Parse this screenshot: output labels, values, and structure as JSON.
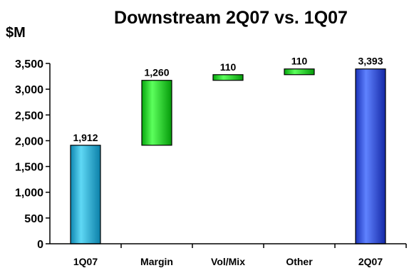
{
  "chart_data": {
    "type": "bar",
    "subtype": "waterfall",
    "title": "Downstream 2Q07 vs. 1Q07",
    "unit_label": "$M",
    "categories": [
      "1Q07",
      "Margin",
      "Vol/Mix",
      "Other",
      "2Q07"
    ],
    "bars": [
      {
        "category": "1Q07",
        "kind": "total",
        "start": 0,
        "end": 1912,
        "label": "1,912"
      },
      {
        "category": "Margin",
        "kind": "delta",
        "start": 1912,
        "end": 3172,
        "label": "1,260"
      },
      {
        "category": "Vol/Mix",
        "kind": "delta",
        "start": 3172,
        "end": 3282,
        "label": "110"
      },
      {
        "category": "Other",
        "kind": "delta",
        "start": 3282,
        "end": 3393,
        "label": "110"
      },
      {
        "category": "2Q07",
        "kind": "total",
        "start": 0,
        "end": 3393,
        "label": "3,393"
      }
    ],
    "ylim": [
      0,
      3500
    ],
    "yticks": [
      0,
      500,
      1000,
      1500,
      2000,
      2500,
      3000,
      3500
    ],
    "ytick_labels": [
      "0",
      "500",
      "1,000",
      "1,500",
      "2,000",
      "2,500",
      "3,000",
      "3,500"
    ],
    "grid": false,
    "colors": {
      "start_total": "#1eb6dc",
      "increase": "#12d81a",
      "end_total": "#2a4fe0"
    }
  }
}
